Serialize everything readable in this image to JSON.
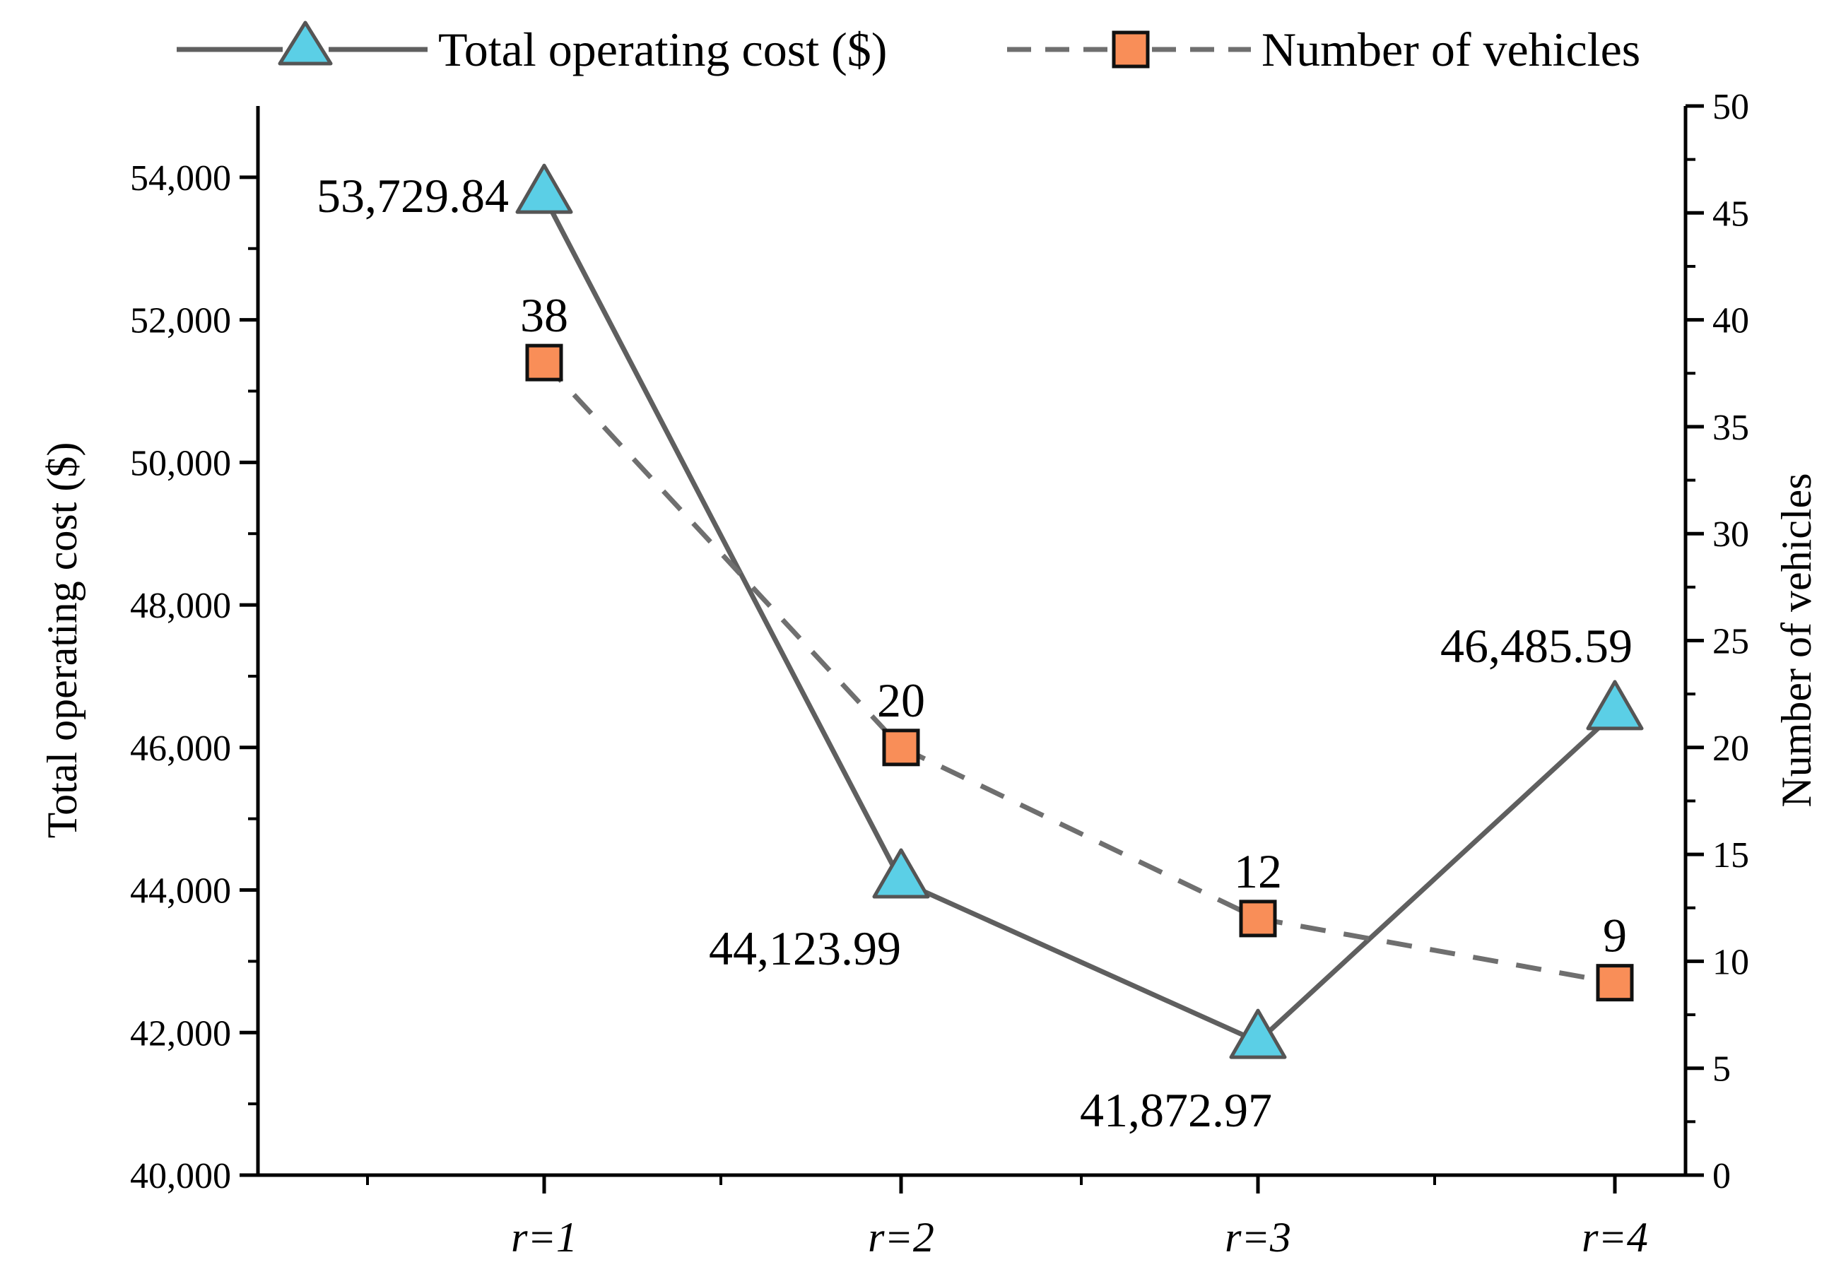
{
  "chart_data": {
    "type": "line",
    "categories": [
      "r=1",
      "r=2",
      "r=3",
      "r=4"
    ],
    "series": [
      {
        "name": "Total operating cost ($)",
        "axis": "left",
        "values": [
          53729.84,
          44123.99,
          41872.97,
          46485.59
        ],
        "labels": [
          "53,729.84",
          "44,123.99",
          "41,872.97",
          "46,485.59"
        ],
        "line_style": "solid",
        "marker": "triangle",
        "marker_color": "#5bcfe6",
        "line_color": "#5f5f5f"
      },
      {
        "name": "Number of vehicles",
        "axis": "right",
        "values": [
          38,
          20,
          12,
          9
        ],
        "labels": [
          "38",
          "20",
          "12",
          "9"
        ],
        "line_style": "dashed",
        "marker": "square",
        "marker_color": "#f98e58",
        "line_color": "#6f6f6f"
      }
    ],
    "y_left": {
      "label": "Total operating cost ($)",
      "ylim": [
        40000,
        55000
      ],
      "ticks": [
        40000,
        42000,
        44000,
        46000,
        48000,
        50000,
        52000,
        54000
      ],
      "tick_labels": [
        "40,000",
        "42,000",
        "44,000",
        "46,000",
        "48,000",
        "50,000",
        "52,000",
        "54,000"
      ]
    },
    "y_right": {
      "label": "Number of vehicles",
      "ylim": [
        0,
        50
      ],
      "ticks": [
        0,
        5,
        10,
        15,
        20,
        25,
        30,
        35,
        40,
        45,
        50
      ],
      "tick_labels": [
        "0",
        "5",
        "10",
        "15",
        "20",
        "25",
        "30",
        "35",
        "40",
        "45",
        "50"
      ]
    },
    "xlabel": "",
    "legend_position": "top",
    "grid": false
  }
}
